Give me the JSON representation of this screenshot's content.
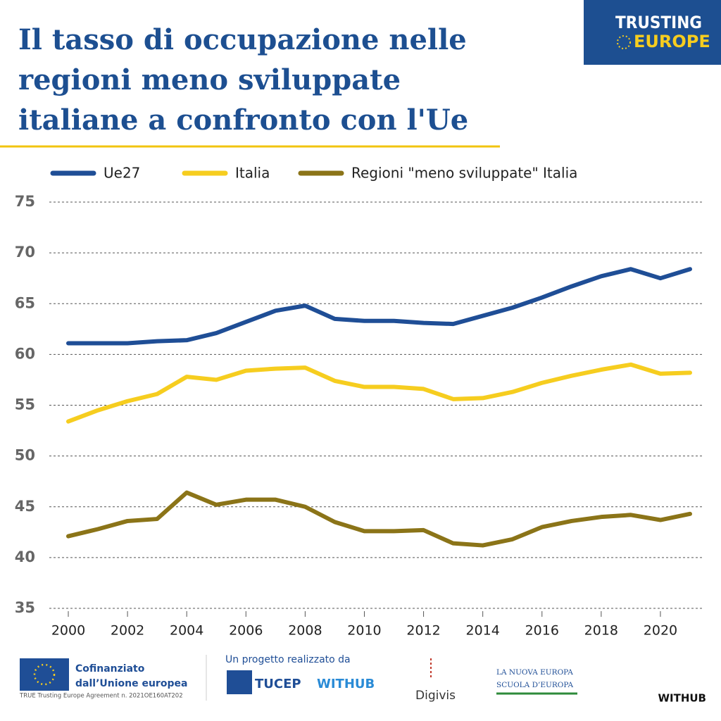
{
  "chart_data": {
    "type": "line",
    "title": "Il tasso di occupazione nelle regioni meno sviluppate italiane a confronto con l'Ue",
    "x": [
      2000,
      2001,
      2002,
      2003,
      2004,
      2005,
      2006,
      2007,
      2008,
      2009,
      2010,
      2011,
      2012,
      2013,
      2014,
      2015,
      2016,
      2017,
      2018,
      2019,
      2020,
      2021
    ],
    "series": [
      {
        "name": "Ue27",
        "color": "#1f4e96",
        "values": [
          61.1,
          61.1,
          61.1,
          61.3,
          61.4,
          62.1,
          63.2,
          64.3,
          64.8,
          63.5,
          63.3,
          63.3,
          63.1,
          63.0,
          63.8,
          64.6,
          65.6,
          66.7,
          67.7,
          68.4,
          67.5,
          68.4
        ]
      },
      {
        "name": "Italia",
        "color": "#f6cd1f",
        "values": [
          53.4,
          54.5,
          55.4,
          56.1,
          57.8,
          57.5,
          58.4,
          58.6,
          58.7,
          57.4,
          56.8,
          56.8,
          56.6,
          55.6,
          55.7,
          56.3,
          57.2,
          57.9,
          58.5,
          59.0,
          58.1,
          58.2
        ]
      },
      {
        "name": "Regioni \"meno sviluppate\" Italia",
        "color": "#8b7418",
        "values": [
          42.1,
          42.8,
          43.6,
          43.8,
          46.4,
          45.2,
          45.7,
          45.7,
          45.0,
          43.5,
          42.6,
          42.6,
          42.7,
          41.4,
          41.2,
          41.8,
          43.0,
          43.6,
          44.0,
          44.2,
          43.7,
          44.3
        ]
      }
    ],
    "xlim": [
      2000,
      2021
    ],
    "xticks": [
      2000,
      2002,
      2004,
      2006,
      2008,
      2010,
      2012,
      2014,
      2016,
      2018,
      2020
    ],
    "ylim": [
      35,
      75
    ],
    "yticks": [
      35,
      40,
      45,
      50,
      55,
      60,
      65,
      70,
      75
    ],
    "grid": true,
    "legend": "top"
  },
  "logo": {
    "line1": "TRUSTING",
    "line2": "EUROPE"
  },
  "footer": {
    "cofinanced": "Cofinanziato dall’Unione europea",
    "agreement": "TRUE Trusting Europe Agreement n. 2021OE160AT202",
    "project": "Un progetto realizzato da",
    "partners": [
      "TUCEP",
      "WITHUB",
      "Digivis",
      "LA NUOVA EUROPA",
      "SCUOLA D’EUROPA"
    ],
    "brand": "WITHUB"
  }
}
